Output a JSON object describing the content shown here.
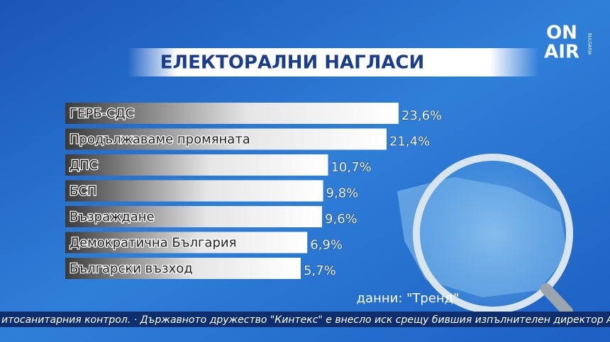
{
  "logo": {
    "line1": "ON",
    "line2": "AIR",
    "sub": "BULGARIA"
  },
  "chart_data": {
    "type": "bar",
    "orientation": "horizontal",
    "title": "ЕЛЕКТОРАЛНИ НАГЛАСИ",
    "categories": [
      "ГЕРБ-СДС",
      "Продължаваме промяната",
      "ДПС",
      "БСП",
      "Възраждане",
      "Демократична България",
      "Български възход"
    ],
    "values": [
      23.6,
      21.4,
      10.7,
      9.8,
      9.6,
      6.9,
      5.7
    ],
    "value_labels": [
      "23,6%",
      "21,4%",
      "10,7%",
      "9,8%",
      "9,6%",
      "6,9%",
      "5,7%"
    ],
    "source": "данни: \"Тренд\""
  },
  "ticker": "итосанитарния контрол. · Държавното дружество \"Кинтекс\" е внесло иск срещу бившия изпълнителен директор А"
}
